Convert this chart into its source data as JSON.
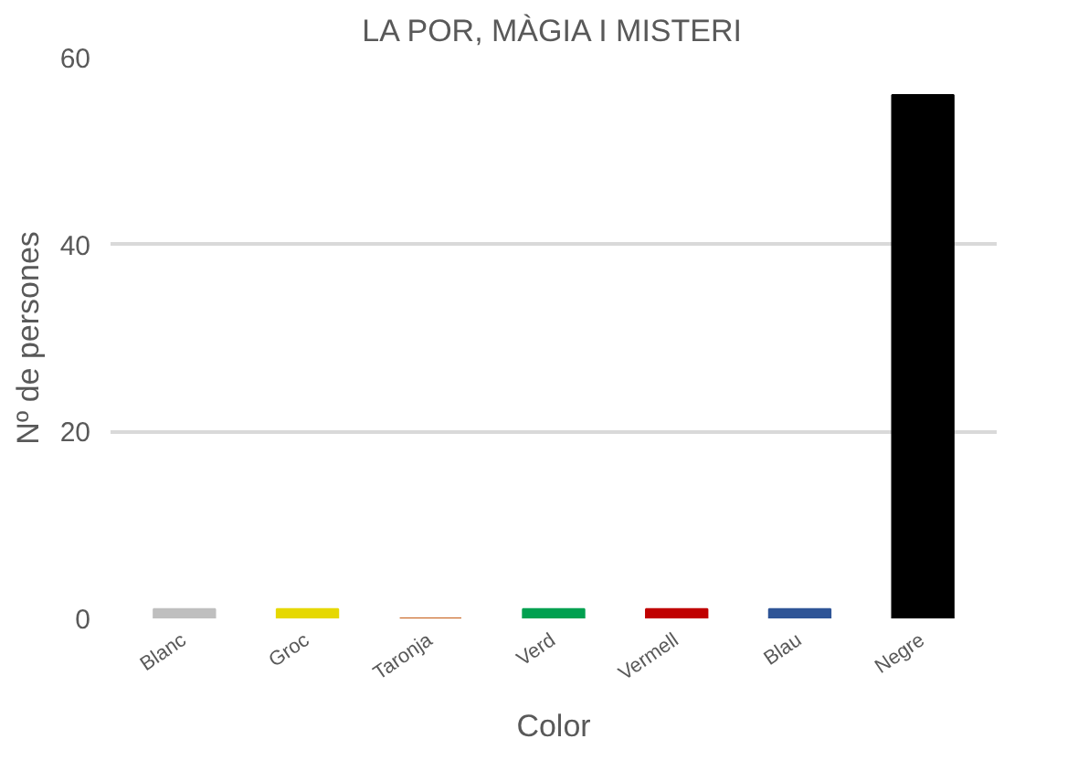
{
  "chart_data": {
    "type": "bar",
    "title": "LA POR, MÀGIA I MISTERI",
    "xlabel": "Color",
    "ylabel": "Nº de persones",
    "categories": [
      "Blanc",
      "Groc",
      "Taronja",
      "Verd",
      "Vermell",
      "Blau",
      "Negre"
    ],
    "values": [
      1,
      1,
      0,
      1,
      1,
      1,
      56
    ],
    "colors": [
      "#bfbfbf",
      "#e6d800",
      "#c55a11",
      "#00a050",
      "#c00000",
      "#2f5597",
      "#000000"
    ],
    "ylim": [
      0,
      60
    ],
    "yticks": [
      0,
      20,
      40,
      60
    ],
    "grid": "y"
  }
}
